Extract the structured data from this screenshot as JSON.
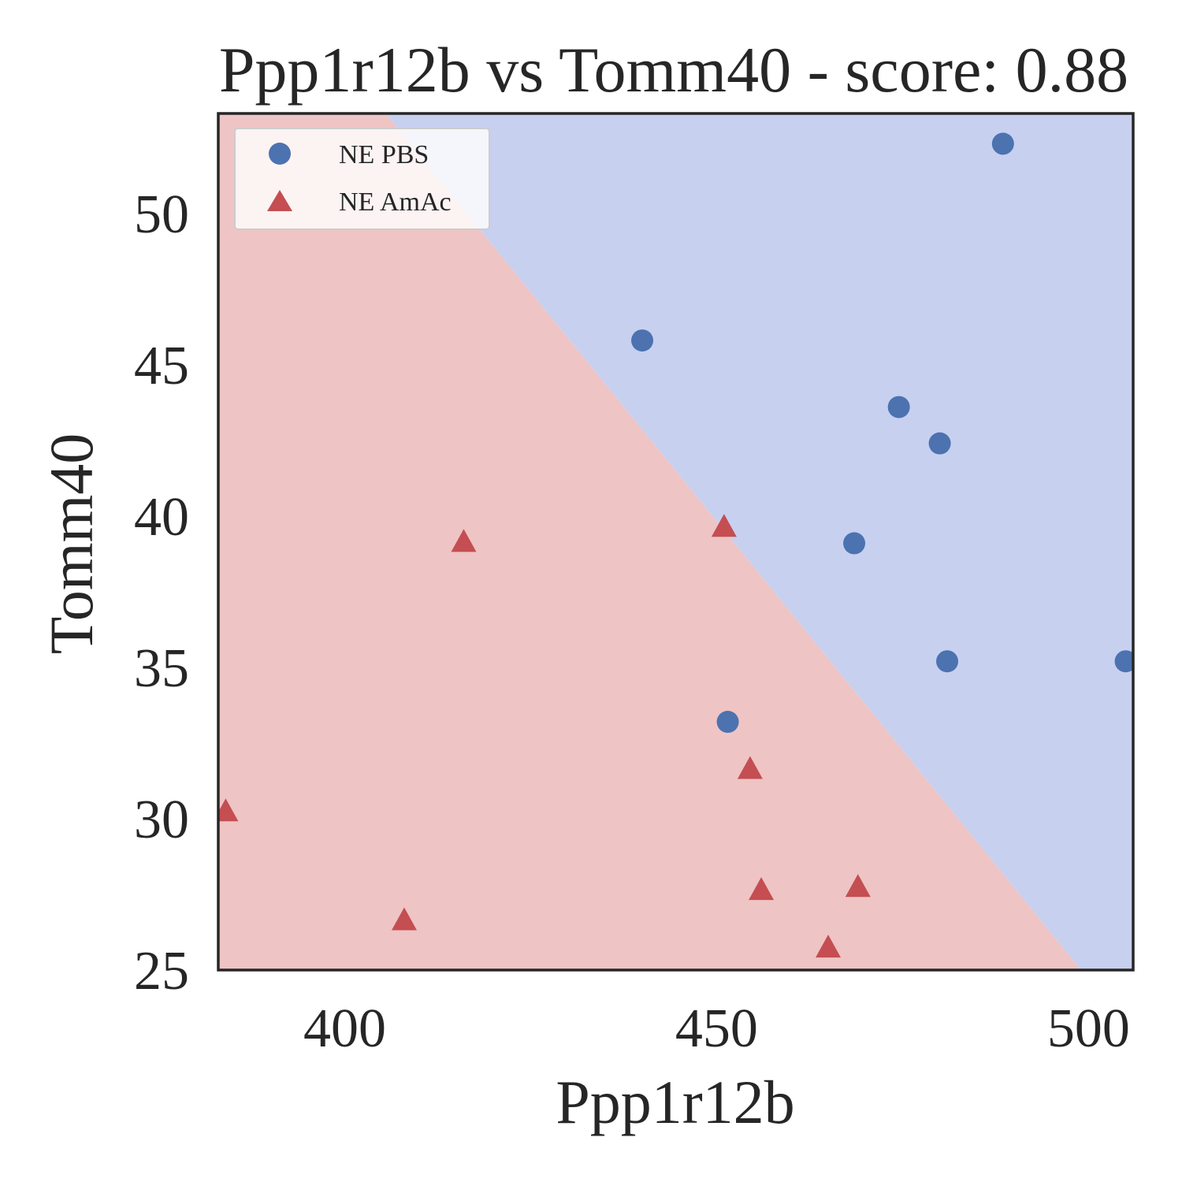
{
  "chart_data": {
    "type": "scatter",
    "title": "Ppp1r12b vs Tomm40 - score: 0.88",
    "xlabel": "Ppp1r12b",
    "ylabel": "Tomm40",
    "xlim": [
      383,
      506
    ],
    "ylim": [
      25,
      53.3
    ],
    "xticks": [
      400,
      450,
      500
    ],
    "yticks": [
      25,
      30,
      35,
      40,
      45,
      50
    ],
    "grid": false,
    "legend_position": "top-left",
    "decision_boundary": {
      "points": [
        [
          405.5,
          53.3
        ],
        [
          499,
          25
        ]
      ],
      "upper_region_color": "#c8d0f0",
      "lower_region_color": "#efc4c4"
    },
    "series": [
      {
        "name": "NE PBS",
        "marker": "circle",
        "color": "#4c72b0",
        "points": [
          [
            488.5,
            52.3
          ],
          [
            440,
            45.8
          ],
          [
            474.5,
            43.6
          ],
          [
            480,
            42.4
          ],
          [
            468.5,
            39.1
          ],
          [
            451.5,
            33.2
          ],
          [
            481,
            35.2
          ],
          [
            505,
            35.2
          ]
        ]
      },
      {
        "name": "NE AmAc",
        "marker": "triangle",
        "color": "#c44e52",
        "points": [
          [
            416,
            39.1
          ],
          [
            451,
            39.6
          ],
          [
            454.5,
            31.6
          ],
          [
            384,
            30.2
          ],
          [
            456,
            27.6
          ],
          [
            469,
            27.7
          ],
          [
            408,
            26.6
          ],
          [
            465,
            25.7
          ]
        ]
      }
    ]
  }
}
